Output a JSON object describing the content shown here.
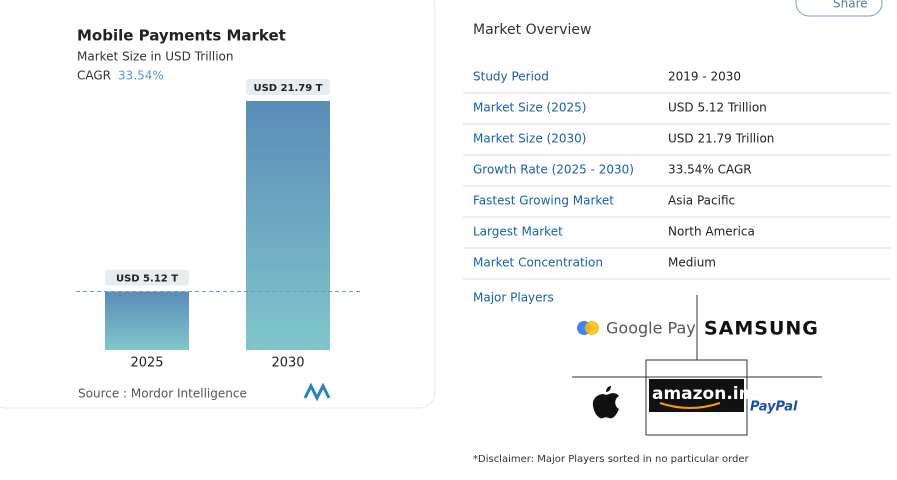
{
  "chart_data": {
    "type": "bar",
    "title": "Mobile Payments Market",
    "subtitle": "Market Size in USD Trillion",
    "cagr_label": "CAGR",
    "cagr": "33.54%",
    "categories": [
      "2025",
      "2030"
    ],
    "values": [
      5.12,
      21.79
    ],
    "value_labels": [
      "USD 5.12 T",
      "USD 21.79 T"
    ],
    "color": "#6aa6c2",
    "source": "Source :  Mordor Intelligence"
  },
  "share": "Share",
  "overview": {
    "title": "Market Overview",
    "rows": [
      [
        "Study Period",
        "2019 - 2030"
      ],
      [
        "Market Size (2025)",
        "USD 5.12 Trillion"
      ],
      [
        "Market Size (2030)",
        "USD 21.79 Trillion"
      ],
      [
        "Growth Rate (2025 - 2030)",
        "33.54% CAGR"
      ],
      [
        "Fastest Growing Market",
        "Asia Pacific"
      ],
      [
        "Largest Market",
        "North America"
      ],
      [
        "Market Concentration",
        "Medium"
      ]
    ],
    "players_label": "Major Players",
    "players": [
      "Google Pay",
      "SAMSUNG",
      "amazon.in",
      "PayPal"
    ],
    "disclaimer": "*Disclaimer: Major Players sorted in no particular order"
  }
}
